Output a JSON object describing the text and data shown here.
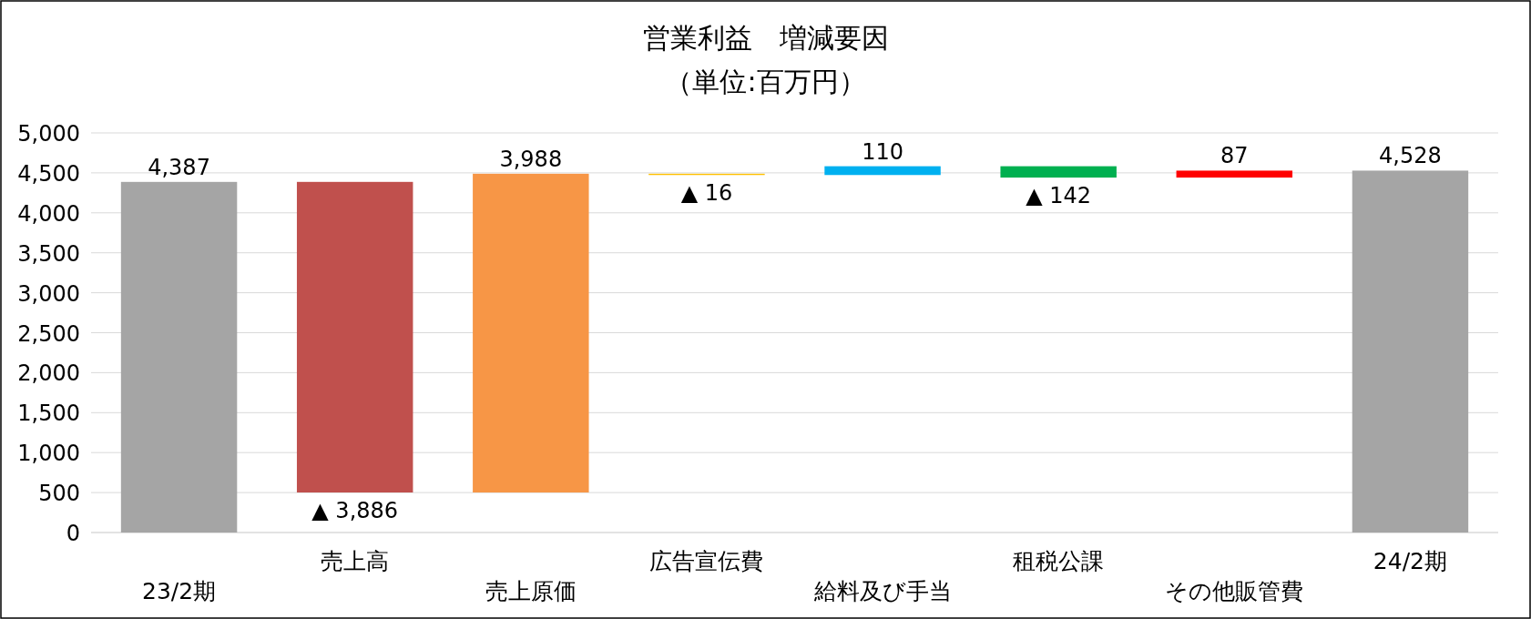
{
  "chart_data": {
    "type": "bar",
    "title": "営業利益　増減要因",
    "subtitle": "（単位:百万円）",
    "categories": [
      "23/2期",
      "売上高",
      "売上原価",
      "広告宣伝費",
      "給料及び手当",
      "租税公課",
      "その他販管費",
      "24/2期"
    ],
    "values": [
      4387,
      -3886,
      3988,
      -16,
      110,
      -142,
      87,
      4528
    ],
    "base": [
      0,
      4387,
      501,
      4489,
      4473,
      4583,
      4441,
      0
    ],
    "colors": [
      "#a5a5a5",
      "#c0504d",
      "#f79646",
      "#ffc000",
      "#00b0f0",
      "#00b050",
      "#ff0000",
      "#a5a5a5"
    ],
    "value_labels": [
      "4,387",
      "▲ 3,886",
      "3,988",
      "▲ 16",
      "110",
      "▲ 142",
      "87",
      "4,528"
    ],
    "ylim": [
      0,
      5000
    ],
    "yticks": [
      0,
      {
        "value": 500,
        "label": "500"
      },
      {
        "value": 1000,
        "label": "1,000"
      },
      {
        "value": 1500,
        "label": "1,500"
      },
      {
        "value": 2000,
        "label": "2,000"
      },
      {
        "value": 2500,
        "label": "2,500"
      },
      {
        "value": 3000,
        "label": "3,000"
      },
      {
        "value": 3500,
        "label": "3,500"
      },
      {
        "value": 4000,
        "label": "4,000"
      },
      {
        "value": 4500,
        "label": "4,500"
      },
      {
        "value": 5000,
        "label": "5,000"
      }
    ],
    "grid": "y"
  }
}
